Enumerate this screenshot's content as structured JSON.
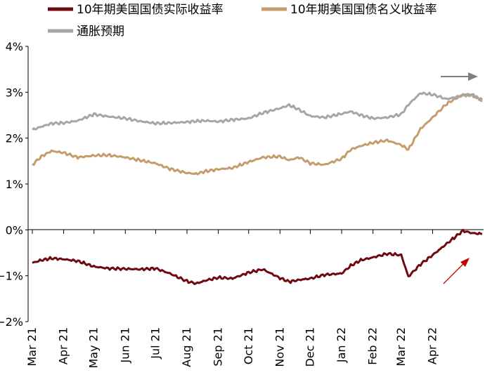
{
  "chart_data": {
    "type": "line",
    "yunit": "%",
    "ylim": [
      -2,
      4
    ],
    "yticks": [
      "4%",
      "3%",
      "2%",
      "1%",
      "0%",
      "−1%",
      "−2%"
    ],
    "xlim": [
      "2021-03-01",
      "2022-05-20"
    ],
    "xticks": [
      "Mar 21",
      "Apr 21",
      "May 21",
      "Jun 21",
      "Jul 21",
      "Aug 21",
      "Sep 21",
      "Oct 21",
      "Nov 21",
      "Dec 21",
      "Jan 22",
      "Feb 22",
      "Mar 22",
      "Apr 22"
    ],
    "xtick_dates": [
      "2021-03-01",
      "2021-04-01",
      "2021-05-01",
      "2021-06-01",
      "2021-07-01",
      "2021-08-01",
      "2021-09-01",
      "2021-10-01",
      "2021-11-01",
      "2021-12-01",
      "2022-01-01",
      "2022-02-01",
      "2022-03-01",
      "2022-04-01"
    ],
    "legend_position": "top-left",
    "series": [
      {
        "name": "10年期美国国债实际收益率",
        "color": "#6d0a0f",
        "x": [
          "2021-03-01",
          "2021-03-10",
          "2021-03-20",
          "2021-04-01",
          "2021-04-15",
          "2021-05-01",
          "2021-05-15",
          "2021-06-01",
          "2021-06-15",
          "2021-07-01",
          "2021-07-15",
          "2021-08-01",
          "2021-08-10",
          "2021-08-20",
          "2021-09-01",
          "2021-09-15",
          "2021-10-01",
          "2021-10-15",
          "2021-11-01",
          "2021-11-10",
          "2021-11-20",
          "2021-12-01",
          "2021-12-15",
          "2022-01-01",
          "2022-01-10",
          "2022-01-20",
          "2022-02-01",
          "2022-02-15",
          "2022-03-01",
          "2022-03-08",
          "2022-03-20",
          "2022-04-01",
          "2022-04-15",
          "2022-05-01",
          "2022-05-10",
          "2022-05-20"
        ],
        "values": [
          -0.72,
          -0.66,
          -0.62,
          -0.64,
          -0.68,
          -0.8,
          -0.84,
          -0.85,
          -0.86,
          -0.84,
          -0.95,
          -1.12,
          -1.17,
          -1.1,
          -1.04,
          -1.06,
          -0.93,
          -0.86,
          -1.05,
          -1.13,
          -1.09,
          -1.06,
          -0.98,
          -0.95,
          -0.78,
          -0.66,
          -0.6,
          -0.52,
          -0.55,
          -1.02,
          -0.75,
          -0.55,
          -0.3,
          -0.02,
          -0.07,
          -0.09
        ]
      },
      {
        "name": "10年期美国国债名义收益率",
        "color": "#c69c6d",
        "x": [
          "2021-03-01",
          "2021-03-10",
          "2021-03-20",
          "2021-04-01",
          "2021-04-15",
          "2021-05-01",
          "2021-05-15",
          "2021-06-01",
          "2021-06-15",
          "2021-07-01",
          "2021-07-15",
          "2021-08-01",
          "2021-08-10",
          "2021-08-20",
          "2021-09-01",
          "2021-09-15",
          "2021-10-01",
          "2021-10-15",
          "2021-11-01",
          "2021-11-10",
          "2021-11-20",
          "2021-12-01",
          "2021-12-15",
          "2022-01-01",
          "2022-01-10",
          "2022-01-20",
          "2022-02-01",
          "2022-02-15",
          "2022-03-01",
          "2022-03-08",
          "2022-03-20",
          "2022-04-01",
          "2022-04-15",
          "2022-05-01",
          "2022-05-10",
          "2022-05-20"
        ],
        "values": [
          1.42,
          1.6,
          1.72,
          1.68,
          1.58,
          1.62,
          1.63,
          1.58,
          1.52,
          1.45,
          1.33,
          1.24,
          1.22,
          1.28,
          1.32,
          1.35,
          1.48,
          1.58,
          1.6,
          1.52,
          1.58,
          1.45,
          1.42,
          1.55,
          1.75,
          1.83,
          1.9,
          1.95,
          1.85,
          1.75,
          2.2,
          2.45,
          2.75,
          2.95,
          2.93,
          2.84
        ]
      },
      {
        "name": "通胀预期",
        "color": "#a6a6a6",
        "x": [
          "2021-03-01",
          "2021-03-10",
          "2021-03-20",
          "2021-04-01",
          "2021-04-15",
          "2021-05-01",
          "2021-05-15",
          "2021-06-01",
          "2021-06-15",
          "2021-07-01",
          "2021-07-15",
          "2021-08-01",
          "2021-08-10",
          "2021-08-20",
          "2021-09-01",
          "2021-09-15",
          "2021-10-01",
          "2021-10-15",
          "2021-11-01",
          "2021-11-10",
          "2021-11-20",
          "2021-12-01",
          "2021-12-15",
          "2022-01-01",
          "2022-01-10",
          "2022-01-20",
          "2022-02-01",
          "2022-02-15",
          "2022-03-01",
          "2022-03-08",
          "2022-03-20",
          "2022-04-01",
          "2022-04-15",
          "2022-05-01",
          "2022-05-10",
          "2022-05-20"
        ],
        "values": [
          2.18,
          2.25,
          2.32,
          2.33,
          2.38,
          2.52,
          2.47,
          2.43,
          2.37,
          2.32,
          2.33,
          2.35,
          2.37,
          2.38,
          2.36,
          2.4,
          2.43,
          2.55,
          2.65,
          2.72,
          2.62,
          2.48,
          2.45,
          2.53,
          2.58,
          2.5,
          2.43,
          2.45,
          2.52,
          2.73,
          2.98,
          2.95,
          2.85,
          2.93,
          2.95,
          2.8
        ]
      }
    ]
  }
}
